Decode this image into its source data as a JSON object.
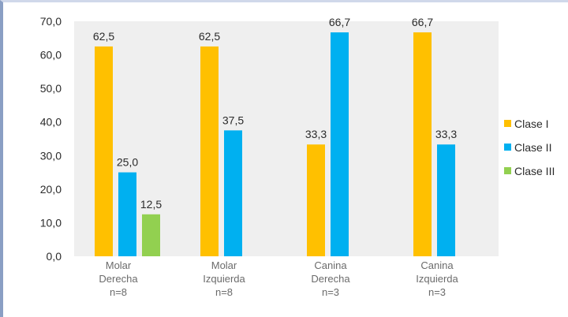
{
  "chart_data": {
    "type": "bar",
    "categories": [
      [
        "Molar",
        "Derecha",
        "n=8"
      ],
      [
        "Molar",
        "Izquierda",
        "n=8"
      ],
      [
        "Canina",
        "Derecha",
        "n=3"
      ],
      [
        "Canina",
        "Izquierda",
        "n=3"
      ]
    ],
    "series": [
      {
        "name": "Clase I",
        "color": "#FFC000",
        "values": [
          62.5,
          62.5,
          33.3,
          66.7
        ],
        "labels": [
          "62,5",
          "62,5",
          "33,3",
          "66,7"
        ]
      },
      {
        "name": "Clase II",
        "color": "#00B0F0",
        "values": [
          25.0,
          37.5,
          66.7,
          33.3
        ],
        "labels": [
          "25,0",
          "37,5",
          "66,7",
          "33,3"
        ]
      },
      {
        "name": "Clase III",
        "color": "#92D050",
        "values": [
          12.5,
          null,
          null,
          null
        ],
        "labels": [
          "12,5",
          "",
          "",
          ""
        ]
      }
    ],
    "ylim": [
      0,
      70
    ],
    "yticks": [
      0,
      10,
      20,
      30,
      40,
      50,
      60,
      70
    ],
    "ytick_labels": [
      "0,0",
      "10,0",
      "20,0",
      "30,0",
      "40,0",
      "50,0",
      "60,0",
      "70,0"
    ],
    "grid": false,
    "legend_position": "right",
    "plot_background": "#EFEFEF",
    "title": "",
    "xlabel": "",
    "ylabel": ""
  }
}
